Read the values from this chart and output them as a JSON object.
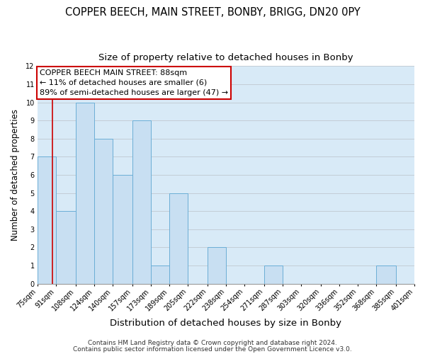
{
  "title": "COPPER BEECH, MAIN STREET, BONBY, BRIGG, DN20 0PY",
  "subtitle": "Size of property relative to detached houses in Bonby",
  "xlabel": "Distribution of detached houses by size in Bonby",
  "ylabel": "Number of detached properties",
  "bin_edges": [
    75,
    91,
    108,
    124,
    140,
    157,
    173,
    189,
    205,
    222,
    238,
    254,
    271,
    287,
    303,
    320,
    336,
    352,
    368,
    385,
    401
  ],
  "bar_heights": [
    7,
    4,
    10,
    8,
    6,
    9,
    1,
    5,
    0,
    2,
    0,
    0,
    1,
    0,
    0,
    0,
    0,
    0,
    1,
    0
  ],
  "bar_fill_color": "#c8dff2",
  "bar_edge_color": "#6baed6",
  "grid_color": "#c0c8d0",
  "bg_color": "#d8eaf7",
  "red_line_x": 88,
  "ylim": [
    0,
    12
  ],
  "yticks": [
    0,
    1,
    2,
    3,
    4,
    5,
    6,
    7,
    8,
    9,
    10,
    11,
    12
  ],
  "annotation_title": "COPPER BEECH MAIN STREET: 88sqm",
  "annotation_line1": "← 11% of detached houses are smaller (6)",
  "annotation_line2": "89% of semi-detached houses are larger (47) →",
  "annotation_box_color": "#ffffff",
  "annotation_border_color": "#cc0000",
  "footer1": "Contains HM Land Registry data © Crown copyright and database right 2024.",
  "footer2": "Contains public sector information licensed under the Open Government Licence v3.0.",
  "title_fontsize": 10.5,
  "subtitle_fontsize": 9.5,
  "xlabel_fontsize": 9.5,
  "ylabel_fontsize": 8.5,
  "tick_label_fontsize": 7,
  "annotation_fontsize": 8,
  "footer_fontsize": 6.5
}
